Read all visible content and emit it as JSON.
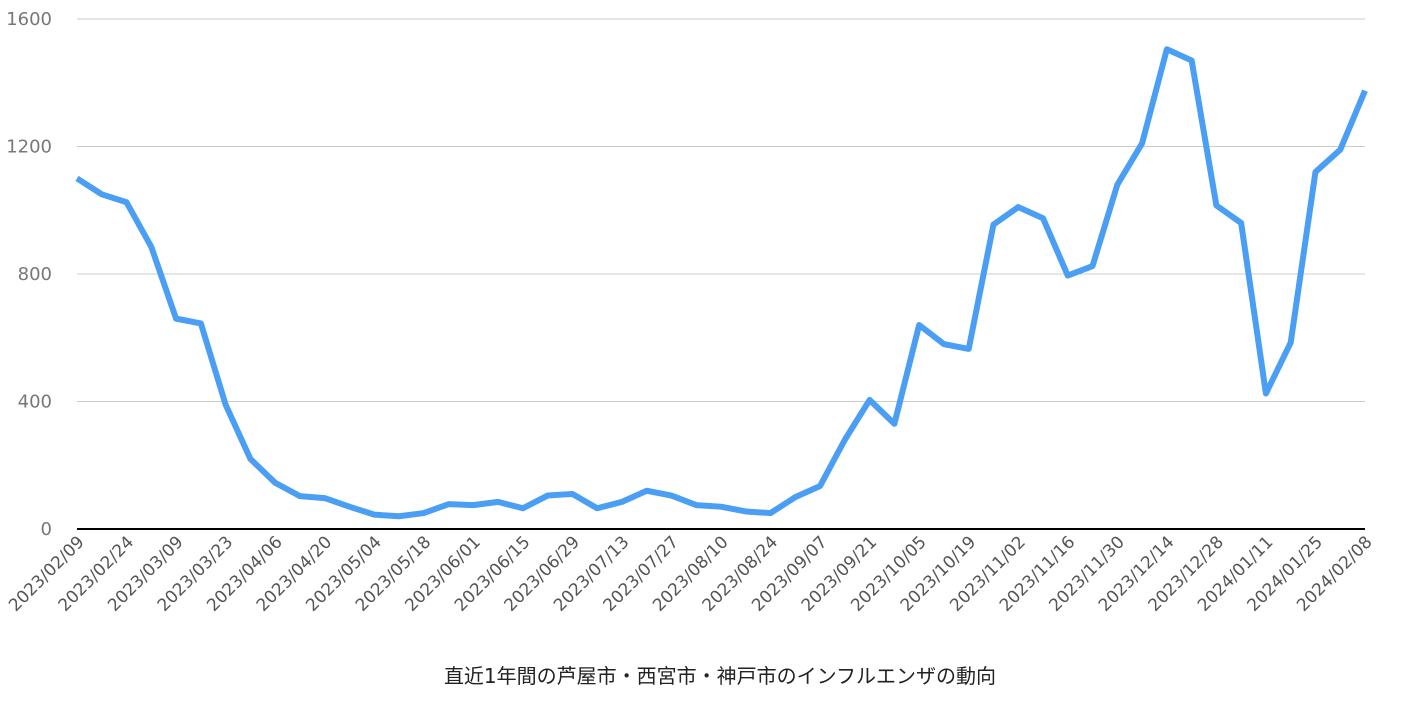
{
  "chart_data": {
    "type": "line",
    "title": "直近1年間の芦屋市・西宮市・神戸市のインフルエンザの動向",
    "categories": [
      "2023/02/09",
      null,
      "2023/02/24",
      null,
      "2023/03/09",
      null,
      "2023/03/23",
      null,
      "2023/04/06",
      null,
      "2023/04/20",
      null,
      "2023/05/04",
      null,
      "2023/05/18",
      null,
      "2023/06/01",
      null,
      "2023/06/15",
      null,
      "2023/06/29",
      null,
      "2023/07/13",
      null,
      "2023/07/27",
      null,
      "2023/08/10",
      null,
      "2023/08/24",
      null,
      "2023/09/07",
      null,
      "2023/09/21",
      null,
      "2023/10/05",
      null,
      "2023/10/19",
      null,
      "2023/11/02",
      null,
      "2023/11/16",
      null,
      "2023/11/30",
      null,
      "2023/12/14",
      null,
      "2023/12/28",
      null,
      "2024/01/11",
      null,
      "2024/01/25",
      null,
      "2024/02/08"
    ],
    "values": [
      1100,
      1050,
      1025,
      885,
      660,
      645,
      390,
      220,
      145,
      103,
      97,
      70,
      45,
      40,
      50,
      78,
      75,
      85,
      65,
      105,
      110,
      65,
      85,
      120,
      105,
      75,
      70,
      55,
      50,
      100,
      135,
      280,
      405,
      330,
      640,
      580,
      565,
      955,
      1010,
      975,
      795,
      825,
      1080,
      1210,
      1505,
      1470,
      1015,
      960,
      425,
      585,
      1120,
      1190,
      1375
    ],
    "color": "#4a9ff5",
    "ylim": [
      0,
      1600
    ],
    "yticks": [
      0,
      400,
      800,
      1200,
      1600
    ],
    "grid": true
  }
}
